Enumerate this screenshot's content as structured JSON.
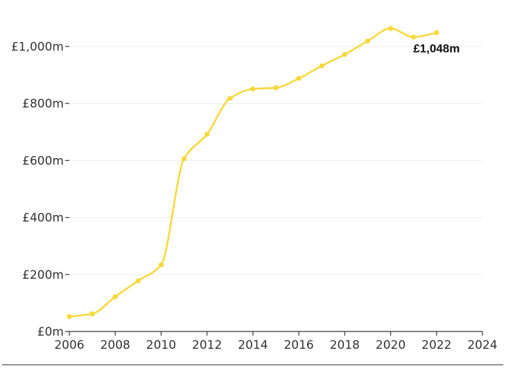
{
  "chart_data": {
    "type": "line",
    "title": "",
    "xlabel": "",
    "ylabel": "",
    "xlim": [
      2006,
      2024
    ],
    "ylim": [
      0,
      1090
    ],
    "x_ticks": [
      2006,
      2008,
      2010,
      2012,
      2014,
      2016,
      2018,
      2020,
      2022,
      2024
    ],
    "x_tick_labels": [
      "2006",
      "2008",
      "2010",
      "2012",
      "2014",
      "2016",
      "2018",
      "2020",
      "2022",
      "2024"
    ],
    "y_ticks": [
      0,
      200,
      400,
      600,
      800,
      1000
    ],
    "y_tick_labels": [
      "£0m",
      "£200m",
      "£400m",
      "£600m",
      "£800m",
      "£1,000m"
    ],
    "grid": true,
    "series": [
      {
        "color": "#f7d83c",
        "x": [
          2006,
          2007,
          2008,
          2009,
          2010,
          2011,
          2012,
          2013,
          2014,
          2015,
          2016,
          2017,
          2018,
          2019,
          2020,
          2021,
          2022
        ],
        "y": [
          52,
          62,
          122,
          178,
          234,
          606,
          692,
          818,
          851,
          855,
          888,
          932,
          972,
          1019,
          1063,
          1033,
          1048
        ]
      }
    ],
    "annotations": [
      {
        "text": "£1,048m",
        "x": 2022,
        "y": 1048
      }
    ]
  }
}
